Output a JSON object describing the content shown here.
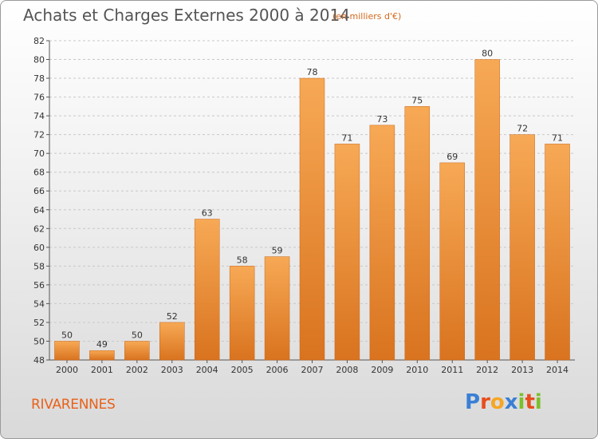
{
  "title": "Achats et Charges Externes 2000 à 2014",
  "subtitle": "(en milliers d'€)",
  "commune": "RIVARENNES",
  "logo": {
    "text": "Proxiti",
    "letters": [
      {
        "ch": "P",
        "color": "#3a7fd5"
      },
      {
        "ch": "r",
        "color": "#e84d1c"
      },
      {
        "ch": "o",
        "color": "#f5a623"
      },
      {
        "ch": "x",
        "color": "#3a7fd5"
      },
      {
        "ch": "i",
        "color": "#7cbf2a"
      },
      {
        "ch": "t",
        "color": "#e84d1c"
      },
      {
        "ch": "i",
        "color": "#7cbf2a"
      }
    ]
  },
  "colors": {
    "bar_top": "#f7a955",
    "bar_bottom": "#d9731f",
    "bar_edge": "#c8661a",
    "title": "#555555",
    "accent": "#e8611a"
  },
  "chart_data": {
    "type": "bar",
    "categories": [
      "2000",
      "2001",
      "2002",
      "2003",
      "2004",
      "2005",
      "2006",
      "2007",
      "2008",
      "2009",
      "2010",
      "2011",
      "2012",
      "2013",
      "2014"
    ],
    "values": [
      50,
      49,
      50,
      52,
      63,
      58,
      59,
      78,
      71,
      73,
      75,
      69,
      80,
      72,
      71
    ],
    "ylim": [
      48,
      82
    ],
    "yticks": [
      48,
      50,
      52,
      54,
      56,
      58,
      60,
      62,
      64,
      66,
      68,
      70,
      72,
      74,
      76,
      78,
      80,
      82
    ],
    "grid": "horizontal-dashed",
    "data_labels": true
  }
}
